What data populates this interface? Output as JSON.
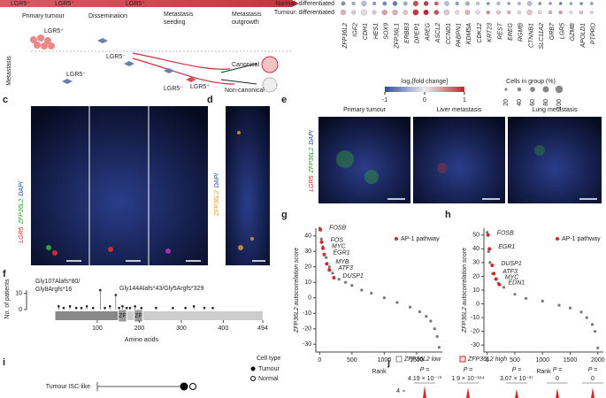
{
  "panel_labels": [
    "c",
    "d",
    "e",
    "f",
    "g",
    "h",
    "i",
    "j"
  ],
  "schematic": {
    "top_labels": [
      "LGR5⁺",
      "LGR5⁺",
      "LGR5⁺"
    ],
    "stages": [
      [
        "Primary tumour"
      ],
      [
        "Dissemination"
      ],
      [
        "Metastasis",
        "seeding"
      ],
      [
        "Metastasis",
        "outgrowth"
      ]
    ],
    "row_label": "Metastasis",
    "cell_labels": [
      "LGR5⁺",
      "LGR5⁻",
      "LGR5⁻",
      "LGR5⁺",
      "LGR5⁻"
    ],
    "routes": [
      "Canonical",
      "Non-canonical"
    ]
  },
  "dotplot": {
    "rows": [
      "Normal: differentiated",
      "Tumour: differentiated"
    ],
    "genes": [
      "ZFP36L2",
      "IGF2",
      "CDH1",
      "HES1",
      "SOX9",
      "ZFP36L1",
      "ERBB3",
      "DPEP1",
      "AREG",
      "ASCL2",
      "CCND1",
      "PABPN1",
      "KDM5A",
      "CDK12",
      "KRT23",
      "REST",
      "EREG",
      "RGMB",
      "CTNNB1",
      "SLC11A2",
      "GRB7",
      "LGR5",
      "GZMB",
      "APOLD1",
      "PTPRO"
    ],
    "fold_change": [
      [
        -0.6,
        -0.4,
        -0.3,
        -0.5,
        -0.6,
        -0.7,
        -0.4,
        0.8,
        0.9,
        0.7,
        -0.3,
        -0.5,
        -0.4,
        -0.2,
        -0.6,
        -0.3,
        -0.5,
        -0.4,
        -0.3,
        -0.6,
        -0.5,
        -0.7,
        -0.4,
        -0.6,
        -0.5
      ],
      [
        0.3,
        0.2,
        0.1,
        0.2,
        0.4,
        0.3,
        0.2,
        0.9,
        1,
        0.8,
        0.2,
        0.1,
        0.3,
        0.1,
        0.5,
        0.2,
        0.3,
        0.1,
        0.2,
        0.1,
        0.3,
        0.4,
        0.1,
        0.2,
        0.1
      ]
    ],
    "pct": [
      [
        40,
        30,
        60,
        30,
        40,
        50,
        40,
        60,
        50,
        40,
        50,
        30,
        40,
        30,
        20,
        30,
        20,
        20,
        50,
        20,
        20,
        20,
        20,
        20,
        20
      ],
      [
        60,
        40,
        70,
        40,
        60,
        60,
        50,
        70,
        60,
        50,
        60,
        40,
        50,
        40,
        30,
        40,
        30,
        30,
        60,
        30,
        30,
        30,
        20,
        30,
        20
      ]
    ],
    "colorbar": {
      "title": "log₂[fold change]",
      "ticks": [
        -1,
        0,
        1
      ]
    },
    "size_legend": {
      "title": "Cells in group (%)",
      "ticks": [
        20,
        40,
        60,
        80,
        100
      ]
    }
  },
  "micrographs": {
    "c": {
      "channels": [
        "LGR5",
        "ZFP36L2",
        "DAPI"
      ]
    },
    "d": {
      "channels": [
        "ZFP36L2",
        "DAPI"
      ]
    },
    "e": {
      "titles": [
        "Primary tumour",
        "Liver metastasis",
        "Lung metastasis"
      ],
      "channels": [
        "LGR5",
        "ZFP36L2",
        "DAPI"
      ]
    }
  },
  "lollipop": {
    "ylabel": "No. of patients",
    "xlabel": "Amino acids",
    "ylim": [
      0,
      12
    ],
    "yticks": [
      0,
      10
    ],
    "xlim": [
      0,
      494
    ],
    "xticks": [
      100,
      200,
      300,
      400,
      494
    ],
    "domains": [
      "ZF",
      "ZF"
    ],
    "positions": [
      8,
      20,
      35,
      50,
      62,
      75,
      90,
      107,
      118,
      130,
      144,
      152,
      160,
      170,
      178,
      190,
      205,
      240,
      280,
      310,
      330,
      355,
      375
    ],
    "counts": [
      2,
      1,
      2,
      1,
      1,
      2,
      1,
      12,
      1,
      2,
      9,
      1,
      2,
      1,
      1,
      2,
      1,
      1,
      1,
      1,
      2,
      1,
      1
    ],
    "annotations": [
      "Gly107Alafs*80/",
      "Gly8Argfs*16",
      "Gly144Alafs*43/Gly5Argfs*329"
    ]
  },
  "chart_data": [
    {
      "type": "scatter",
      "ylabel": "ZFP36L2 autocorrelation score",
      "xlabel": "Rank",
      "xlim": [
        -60,
        1900
      ],
      "ylim": [
        -35,
        45
      ],
      "xticks": [
        0,
        500,
        1000,
        1500
      ],
      "yticks": [
        -30,
        -20,
        -10,
        0,
        10,
        20,
        30,
        40
      ],
      "series": [
        {
          "color": "#777777",
          "x": [
            0,
            25,
            50,
            100,
            150,
            200,
            300,
            400,
            500,
            650,
            800,
            1000,
            1200,
            1400,
            1550,
            1650,
            1720,
            1780,
            1820,
            1850
          ],
          "values": [
            45,
            38,
            33,
            26,
            20,
            16,
            12,
            10,
            8,
            5,
            3,
            0,
            -3,
            -6,
            -9,
            -12,
            -15,
            -20,
            -25,
            -32
          ]
        },
        {
          "name": "AP-1 pathway",
          "color": "#d62728",
          "x": [
            10,
            30,
            50,
            70,
            110,
            150,
            220
          ],
          "values": [
            44,
            36,
            32,
            28,
            22,
            18,
            13
          ],
          "point_labels": [
            "FOSB",
            "FOS",
            "MYC",
            "EGR1",
            "MYB",
            "ATF3",
            "DUSP1"
          ]
        }
      ]
    },
    {
      "type": "scatter",
      "ylabel": "ZFP36L2 autocorrelation score",
      "xlabel": "Rank",
      "xlim": [
        -60,
        2100
      ],
      "ylim": [
        -35,
        55
      ],
      "xticks": [
        0,
        500,
        1000,
        1500,
        2000
      ],
      "yticks": [
        -30,
        -20,
        -10,
        0,
        10,
        20,
        30,
        40,
        50
      ],
      "series": [
        {
          "color": "#777777",
          "x": [
            0,
            25,
            50,
            100,
            150,
            200,
            300,
            500,
            700,
            1000,
            1300,
            1500,
            1700,
            1800,
            1900,
            1950,
            2000
          ],
          "values": [
            52,
            38,
            30,
            22,
            18,
            15,
            12,
            7,
            4,
            2,
            -1,
            -3,
            -6,
            -10,
            -15,
            -20,
            -32
          ]
        },
        {
          "name": "AP-1 pathway",
          "color": "#d62728",
          "x": [
            15,
            40,
            90,
            120,
            160,
            220
          ],
          "values": [
            50,
            40,
            28,
            22,
            18,
            14
          ],
          "point_labels": [
            "FOSB",
            "EGR1",
            "DUSP1",
            "ATF3",
            "MYC",
            "EDN1"
          ]
        }
      ]
    }
  ],
  "panel_i": {
    "rows": [
      "Tumour ISC-like"
    ],
    "legend_title": "Cell type",
    "legend": [
      "Tumour",
      "Normal"
    ]
  },
  "panel_j": {
    "legend": [
      "ZFP36L2 low",
      "ZFP36L2 high"
    ],
    "p_prefix": "P =",
    "p_values": [
      "4.19 × 10⁻⁷³",
      "1.9 × 10⁻¹⁸⁴",
      "3.07 × 10⁻²⁷",
      "0",
      "0"
    ],
    "ytick": 4
  }
}
